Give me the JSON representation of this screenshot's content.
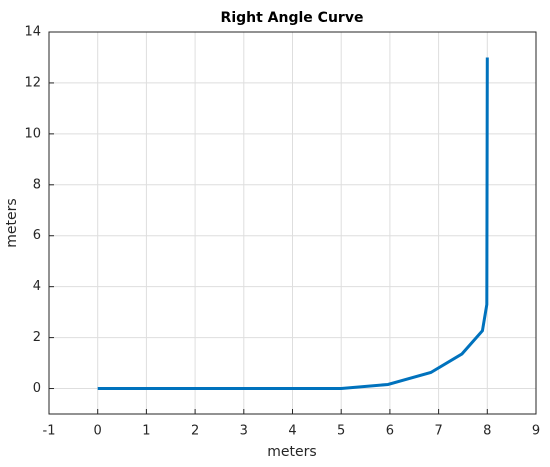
{
  "chart_data": {
    "type": "line",
    "title": "Right Angle Curve",
    "x_label": "meters",
    "y_label": "meters",
    "x": [
      0,
      5,
      5.96,
      6.84,
      7.48,
      7.9,
      7.99,
      8
    ],
    "series": [
      {
        "color": "#0072bd",
        "values": [
          0,
          0,
          0.16,
          0.63,
          1.36,
          2.27,
          3.3,
          13
        ]
      }
    ],
    "xlim": [
      -1,
      9
    ],
    "xticks": [
      -1,
      0,
      1,
      2,
      3,
      4,
      5,
      6,
      7,
      8,
      9
    ],
    "ylim": [
      -1,
      14
    ],
    "yticks": [
      0,
      2,
      4,
      6,
      8,
      10,
      12,
      14
    ],
    "grid": true
  }
}
